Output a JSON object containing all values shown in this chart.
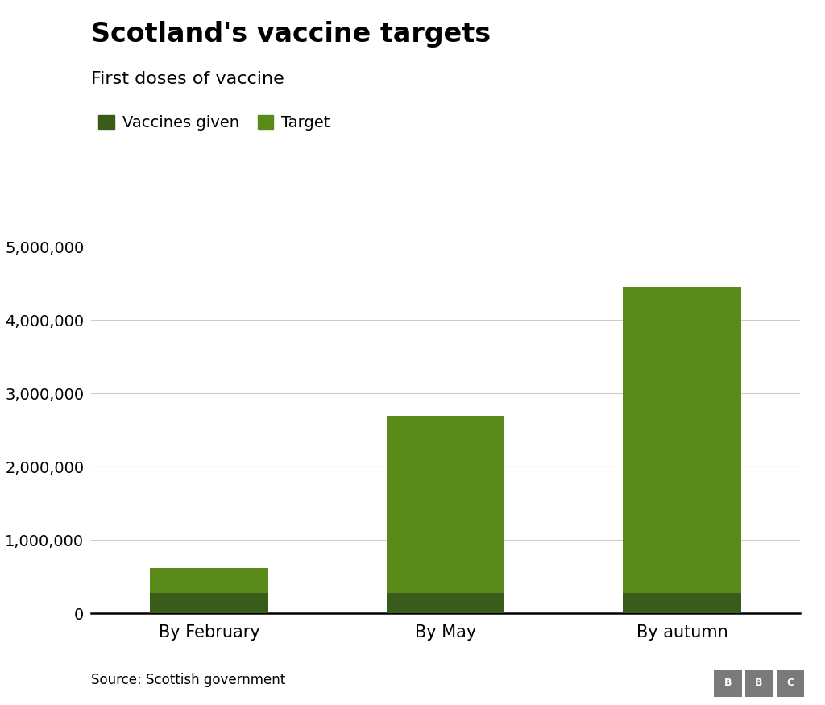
{
  "title": "Scotland's vaccine targets",
  "subtitle": "First doses of vaccine",
  "categories": [
    "By February",
    "By May",
    "By autumn"
  ],
  "vaccines_given": [
    280000,
    280000,
    280000
  ],
  "targets": [
    620000,
    2700000,
    4450000
  ],
  "color_given": "#3a5c1a",
  "color_target": "#5a8a1a",
  "ylim": [
    0,
    5000000
  ],
  "yticks": [
    0,
    1000000,
    2000000,
    3000000,
    4000000,
    5000000
  ],
  "source_text": "Source: Scottish government",
  "legend_given": "Vaccines given",
  "legend_target": "Target",
  "background_color": "#ffffff",
  "title_fontsize": 24,
  "subtitle_fontsize": 16,
  "tick_fontsize": 14,
  "bar_width": 0.5
}
